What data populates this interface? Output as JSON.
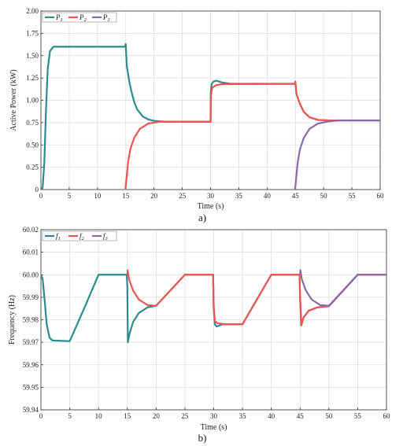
{
  "chart_data": [
    {
      "type": "line",
      "caption": "a)",
      "xlabel": "Time (s)",
      "ylabel": "Active Power (kW)",
      "xlim": [
        0,
        60
      ],
      "ylim": [
        0,
        2.0
      ],
      "xticks": [
        0,
        5,
        10,
        15,
        20,
        25,
        30,
        35,
        40,
        45,
        50,
        55,
        60
      ],
      "yticks": [
        0,
        0.25,
        0.5,
        0.75,
        1.0,
        1.25,
        1.5,
        1.75,
        2.0
      ],
      "ytick_labels": [
        "0",
        "0.25",
        "0.50",
        "0.75",
        "1.00",
        "1.25",
        "1.50",
        "1.75",
        "2.00"
      ],
      "grid": true,
      "legend": "top-left",
      "series": [
        {
          "name": "P1",
          "legend_main": "P",
          "legend_sub": "1",
          "color": "#2a8c90",
          "points": [
            [
              0,
              0
            ],
            [
              0.3,
              0.02
            ],
            [
              0.6,
              0.3
            ],
            [
              0.9,
              0.9
            ],
            [
              1.2,
              1.35
            ],
            [
              1.6,
              1.55
            ],
            [
              2.2,
              1.6
            ],
            [
              14.9,
              1.6
            ],
            [
              15.0,
              1.63
            ],
            [
              15.05,
              1.55
            ],
            [
              15.2,
              1.38
            ],
            [
              15.6,
              1.22
            ],
            [
              16.0,
              1.1
            ],
            [
              16.5,
              0.98
            ],
            [
              17.0,
              0.9
            ],
            [
              18.0,
              0.82
            ],
            [
              19.0,
              0.785
            ],
            [
              20.0,
              0.77
            ],
            [
              22.0,
              0.76
            ],
            [
              30.0,
              0.76
            ],
            [
              30.05,
              1.1
            ],
            [
              30.2,
              1.18
            ],
            [
              30.5,
              1.21
            ],
            [
              31.0,
              1.22
            ],
            [
              32.0,
              1.2
            ],
            [
              33.5,
              1.185
            ],
            [
              44.9,
              1.185
            ],
            [
              45.0,
              1.21
            ],
            [
              45.2,
              1.07
            ],
            [
              45.8,
              0.96
            ],
            [
              46.5,
              0.87
            ],
            [
              47.5,
              0.81
            ],
            [
              49.0,
              0.78
            ],
            [
              51.0,
              0.775
            ],
            [
              60.0,
              0.775
            ]
          ]
        },
        {
          "name": "P2",
          "legend_main": "P",
          "legend_sub": "2",
          "color": "#ef5350",
          "points": [
            [
              14.95,
              0
            ],
            [
              15.1,
              0.1
            ],
            [
              15.4,
              0.3
            ],
            [
              15.8,
              0.45
            ],
            [
              16.5,
              0.58
            ],
            [
              17.5,
              0.68
            ],
            [
              19.0,
              0.74
            ],
            [
              21.0,
              0.76
            ],
            [
              30.0,
              0.76
            ],
            [
              30.05,
              1.05
            ],
            [
              30.3,
              1.14
            ],
            [
              31.0,
              1.17
            ],
            [
              32.0,
              1.18
            ],
            [
              44.9,
              1.185
            ],
            [
              45.0,
              1.2
            ],
            [
              45.2,
              1.07
            ],
            [
              45.8,
              0.96
            ],
            [
              46.5,
              0.87
            ],
            [
              47.5,
              0.81
            ],
            [
              49.0,
              0.78
            ],
            [
              51.0,
              0.775
            ],
            [
              60.0,
              0.775
            ]
          ]
        },
        {
          "name": "P3",
          "legend_main": "P",
          "legend_sub": "3",
          "color": "#8a6aa6",
          "points": [
            [
              44.95,
              0
            ],
            [
              45.1,
              0.1
            ],
            [
              45.4,
              0.3
            ],
            [
              45.8,
              0.45
            ],
            [
              46.5,
              0.58
            ],
            [
              47.5,
              0.68
            ],
            [
              49.0,
              0.74
            ],
            [
              51.0,
              0.765
            ],
            [
              53.0,
              0.775
            ],
            [
              60.0,
              0.775
            ]
          ]
        }
      ]
    },
    {
      "type": "line",
      "caption": "b)",
      "xlabel": "Time (s)",
      "ylabel": "Frequency (Hz)",
      "xlim": [
        0,
        60
      ],
      "ylim": [
        59.94,
        60.02
      ],
      "xticks": [
        0,
        5,
        10,
        15,
        20,
        25,
        30,
        35,
        40,
        45,
        50,
        55,
        60
      ],
      "yticks": [
        59.94,
        59.95,
        59.96,
        59.97,
        59.98,
        59.99,
        60.0,
        60.01,
        60.02
      ],
      "ytick_labels": [
        "59.94",
        "59.95",
        "59.96",
        "59.97",
        "59.98",
        "59.99",
        "60.00",
        "60.01",
        "60.02"
      ],
      "grid": true,
      "legend": "top-left",
      "series": [
        {
          "name": "f1",
          "legend_main": "f",
          "legend_sub": "1",
          "color": "#2a8c90",
          "points": [
            [
              0,
              60.0
            ],
            [
              0.3,
              59.998
            ],
            [
              0.6,
              59.99
            ],
            [
              1.0,
              59.978
            ],
            [
              1.5,
              59.972
            ],
            [
              2.0,
              59.9708
            ],
            [
              5.0,
              59.9705
            ],
            [
              7.5,
              59.985
            ],
            [
              10.0,
              60.0
            ],
            [
              14.9,
              60.0
            ],
            [
              15.0,
              59.995
            ],
            [
              15.1,
              59.97
            ],
            [
              15.4,
              59.974
            ],
            [
              16.0,
              59.979
            ],
            [
              17.0,
              59.983
            ],
            [
              18.5,
              59.9855
            ],
            [
              20.0,
              59.9862
            ],
            [
              25.0,
              60.0
            ],
            [
              29.9,
              60.0
            ],
            [
              30.0,
              59.985
            ],
            [
              30.2,
              59.978
            ],
            [
              30.5,
              59.977
            ],
            [
              31.5,
              59.978
            ],
            [
              35.0,
              59.978
            ],
            [
              40.0,
              60.0
            ],
            [
              44.9,
              60.0
            ],
            [
              45.0,
              59.99
            ],
            [
              45.2,
              59.9775
            ],
            [
              45.6,
              59.981
            ],
            [
              46.5,
              59.984
            ],
            [
              48.0,
              59.9855
            ],
            [
              50.0,
              59.986
            ],
            [
              55.0,
              60.0
            ],
            [
              60.0,
              60.0
            ]
          ]
        },
        {
          "name": "f2",
          "legend_main": "f",
          "legend_sub": "2",
          "color": "#ef5350",
          "points": [
            [
              15.0,
              60.0
            ],
            [
              15.05,
              60.002
            ],
            [
              15.3,
              59.998
            ],
            [
              16.0,
              59.993
            ],
            [
              17.0,
              59.989
            ],
            [
              18.5,
              59.9865
            ],
            [
              20.0,
              59.9862
            ],
            [
              25.0,
              60.0
            ],
            [
              29.9,
              60.0
            ],
            [
              30.0,
              59.986
            ],
            [
              30.2,
              59.9795
            ],
            [
              30.6,
              59.9785
            ],
            [
              32.0,
              59.978
            ],
            [
              35.0,
              59.978
            ],
            [
              40.0,
              60.0
            ],
            [
              44.9,
              60.0
            ],
            [
              45.0,
              59.99
            ],
            [
              45.2,
              59.9775
            ],
            [
              45.6,
              59.981
            ],
            [
              46.5,
              59.984
            ],
            [
              48.0,
              59.9855
            ],
            [
              50.0,
              59.986
            ],
            [
              55.0,
              60.0
            ],
            [
              60.0,
              60.0
            ]
          ]
        },
        {
          "name": "f3",
          "legend_main": "f",
          "legend_sub": "3",
          "color": "#8a6aa6",
          "points": [
            [
              45.0,
              60.0
            ],
            [
              45.05,
              60.002
            ],
            [
              45.3,
              59.998
            ],
            [
              46.0,
              59.993
            ],
            [
              47.0,
              59.989
            ],
            [
              48.5,
              59.9865
            ],
            [
              50.0,
              59.9862
            ],
            [
              55.0,
              60.0
            ],
            [
              60.0,
              60.0
            ]
          ]
        }
      ]
    }
  ]
}
